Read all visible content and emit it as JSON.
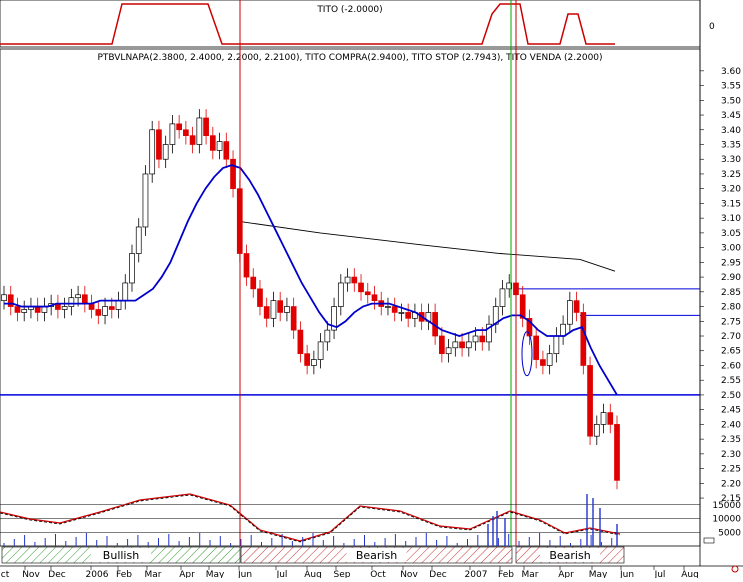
{
  "tito_panel": {
    "title": "TITO (-2.0000)",
    "zero_label": "0",
    "low_periods": [
      "Oct",
      "Nov",
      "Dec",
      "2006",
      "Feb",
      "Mar",
      "Apr",
      "Jul",
      "Aug",
      "Sep",
      "Oct",
      "Nov",
      "Dec",
      "Feb",
      "Mar",
      "Apr",
      "May",
      "Jun"
    ],
    "high_periods": [
      [
        "2006-05",
        "2006-06"
      ],
      [
        "2007-02",
        "2007-03"
      ],
      [
        "2007-04",
        "2007-05"
      ]
    ]
  },
  "main_panel": {
    "title": "PTBVLNAPA(2.3800, 2.4000, 2.2000, 2.2100), TITO COMPRA(2.9400), TITO STOP (2.7943), TITO VENDA (2.2000)"
  },
  "chart_data": {
    "type": "candlestick",
    "symbol": "PTBVLNAPA",
    "last_bar": {
      "open": 2.38,
      "high": 2.4,
      "low": 2.2,
      "close": 2.21
    },
    "ylim": [
      2.14,
      3.63
    ],
    "y_ticks": [
      "3.60",
      "3.55",
      "3.50",
      "3.45",
      "3.40",
      "3.35",
      "3.30",
      "3.25",
      "3.20",
      "3.15",
      "3.10",
      "3.05",
      "3.00",
      "2.95",
      "2.90",
      "2.85",
      "2.80",
      "2.75",
      "2.70",
      "2.65",
      "2.60",
      "2.55",
      "2.50",
      "2.45",
      "2.40",
      "2.35",
      "2.30",
      "2.25",
      "2.20",
      "2.15"
    ],
    "x_ticks": [
      "ct",
      "Nov",
      "Dec",
      "2006",
      "Feb",
      "Mar",
      "Apr",
      "May",
      "Jun",
      "Jul",
      "Aug",
      "Sep",
      "Oct",
      "Nov",
      "Dec",
      "2007",
      "Feb",
      "Mar",
      "Apr",
      "May",
      "Jun",
      "Jul",
      "Aug"
    ],
    "closes": [
      2.84,
      2.8,
      2.78,
      2.79,
      2.8,
      2.78,
      2.8,
      2.81,
      2.79,
      2.8,
      2.83,
      2.84,
      2.81,
      2.79,
      2.77,
      2.8,
      2.79,
      2.82,
      2.88,
      2.98,
      3.07,
      3.25,
      3.4,
      3.3,
      3.35,
      3.42,
      3.4,
      3.38,
      3.35,
      3.44,
      3.38,
      3.33,
      3.36,
      3.3,
      3.2,
      2.98,
      2.9,
      2.86,
      2.8,
      2.76,
      2.82,
      2.78,
      2.8,
      2.72,
      2.64,
      2.6,
      2.62,
      2.68,
      2.72,
      2.8,
      2.88,
      2.9,
      2.88,
      2.85,
      2.84,
      2.82,
      2.8,
      2.8,
      2.78,
      2.78,
      2.76,
      2.78,
      2.75,
      2.78,
      2.7,
      2.64,
      2.66,
      2.68,
      2.66,
      2.68,
      2.7,
      2.68,
      2.74,
      2.8,
      2.86,
      2.88,
      2.84,
      2.76,
      2.7,
      2.62,
      2.6,
      2.64,
      2.7,
      2.74,
      2.82,
      2.78,
      2.6,
      2.36,
      2.4,
      2.44,
      2.4,
      2.21
    ],
    "moving_average": [
      2.81,
      2.81,
      2.8,
      2.8,
      2.8,
      2.8,
      2.81,
      2.81,
      2.81,
      2.81,
      2.81,
      2.82,
      2.82,
      2.82,
      2.82,
      2.82,
      2.84,
      2.86,
      2.9,
      2.95,
      3.02,
      3.09,
      3.15,
      3.2,
      3.24,
      3.27,
      3.28,
      3.27,
      3.23,
      3.18,
      3.12,
      3.06,
      3.0,
      2.94,
      2.88,
      2.83,
      2.78,
      2.74,
      2.73,
      2.75,
      2.78,
      2.8,
      2.81,
      2.81,
      2.81,
      2.8,
      2.79,
      2.78,
      2.76,
      2.74,
      2.72,
      2.71,
      2.7,
      2.71,
      2.72,
      2.72,
      2.74,
      2.76,
      2.77,
      2.77,
      2.75,
      2.72,
      2.7,
      2.7,
      2.7,
      2.72,
      2.73,
      2.66,
      2.6,
      2.55,
      2.5
    ],
    "long_average_line": [
      [
        3.09,
        2.92
      ]
    ],
    "horizontal_levels": {
      "tito_compra": 2.94,
      "tito_stop": 2.7943,
      "tito_venda": 2.2,
      "support": 2.5,
      "resistance_1": 2.86,
      "resistance_2": 2.77
    },
    "vertical_markers": [
      {
        "date": "2006-05-31",
        "color": "#cc0000"
      },
      {
        "date": "2007-02-20",
        "color": "#00aa00"
      },
      {
        "date": "2007-02-26",
        "color": "#cc0000"
      }
    ]
  },
  "volume_panel": {
    "y_ticks": [
      "15000",
      "10000",
      "5000"
    ],
    "ylim": [
      0,
      20000
    ],
    "regimes": [
      {
        "label": "Bullish",
        "start": "2005-10",
        "end": "2006-05"
      },
      {
        "label": "Bearish",
        "start": "2006-06",
        "end": "2007-02"
      },
      {
        "label": "Bearish",
        "start": "2007-03",
        "end": "2007-05"
      }
    ]
  },
  "colors": {
    "up_candle": "#ffffff",
    "down_candle": "#e00000",
    "average": "#0000cc",
    "long_average": "#000000",
    "support": "#0000dd",
    "tito": "#cc0000",
    "bullish_hatch": "#339933",
    "bearish_hatch": "#cc3333"
  }
}
